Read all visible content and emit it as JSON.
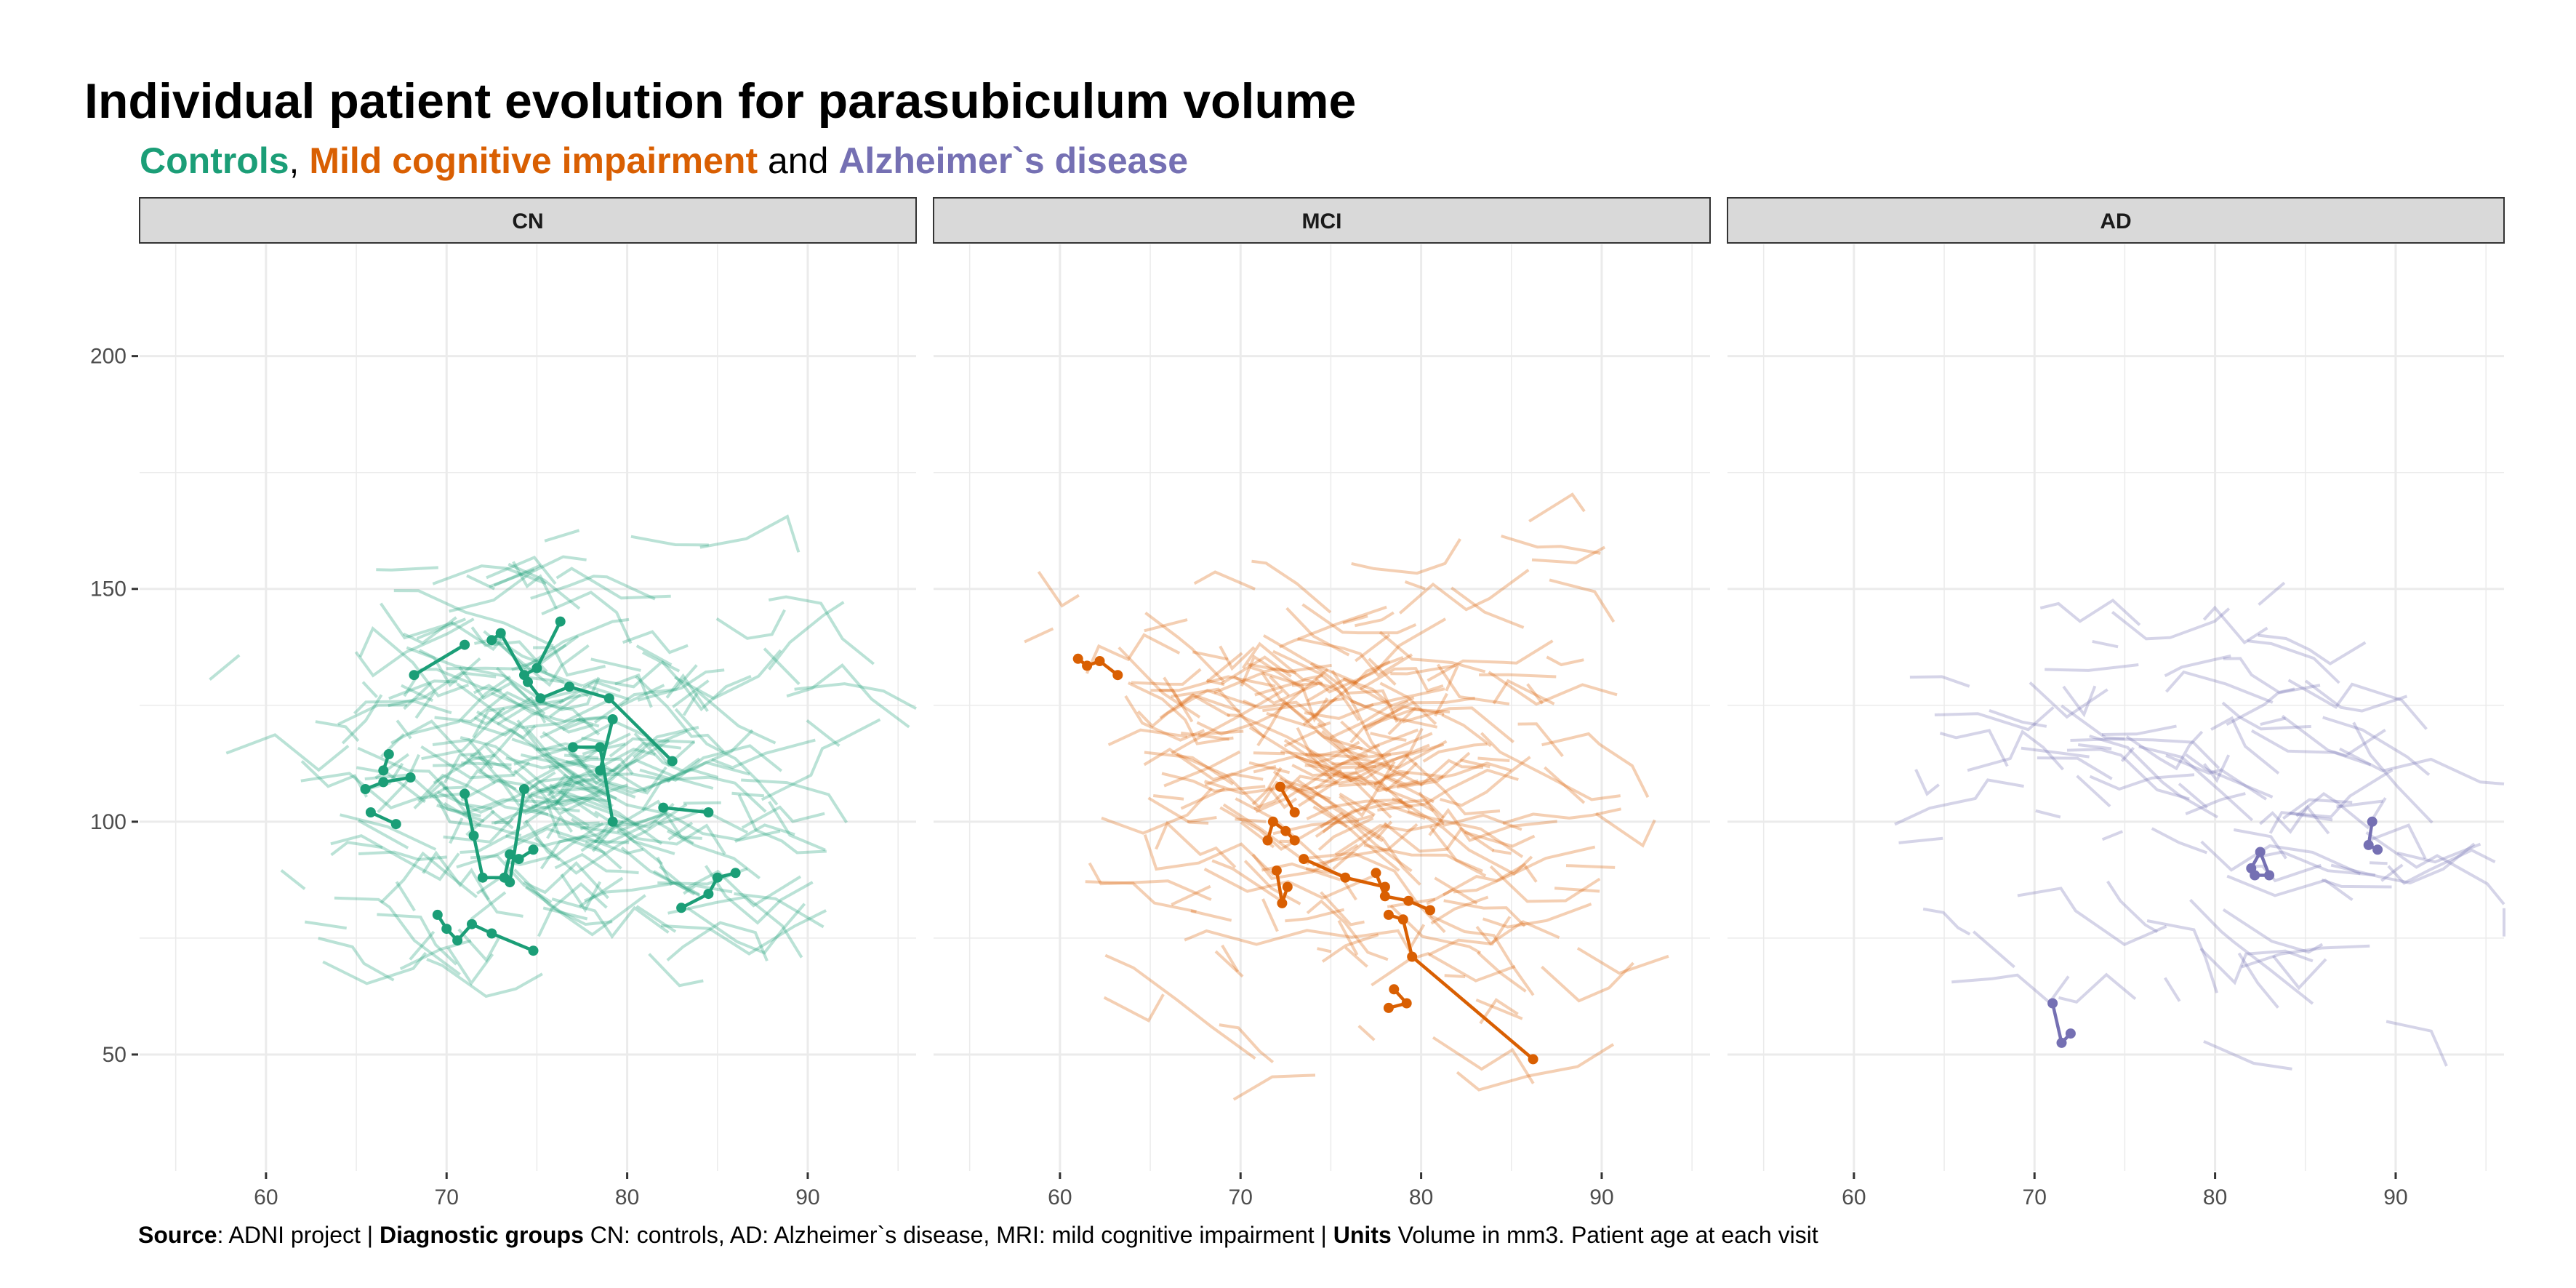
{
  "title": "Individual patient evolution for parasubiculum volume",
  "subtitle": {
    "controls": "Controls",
    "sep1": ", ",
    "mci": "Mild cognitive impairment",
    "sep2": " and ",
    "ad": "Alzheimer`s disease"
  },
  "caption": {
    "source_label": "Source",
    "source_text": ": ADNI project | ",
    "groups_label": "Diagnostic groups",
    "groups_text": " CN: controls, AD: Alzheimer`s disease, MRI: mild cognitive impairment | ",
    "units_label": "Units",
    "units_text": " Volume in mm3. Patient age at each visit"
  },
  "colors": {
    "CN": "#1b9e77",
    "MCI": "#d95f02",
    "AD": "#7570b3",
    "strip_fill": "#d9d9d9",
    "grid": "#ebebeb"
  },
  "chart_data": {
    "type": "line",
    "xlim": [
      53,
      96
    ],
    "ylim": [
      25,
      224
    ],
    "x_ticks": [
      60,
      70,
      80,
      90
    ],
    "y_ticks": [
      50,
      100,
      150,
      200
    ],
    "panels": [
      {
        "name": "CN",
        "background_line_count": 250,
        "background_center": [
          74,
          112
        ],
        "background_spread": [
          6.5,
          20
        ],
        "highlighted": [
          [
            [
              65.8,
              102
            ],
            [
              67.2,
              99.5
            ]
          ],
          [
            [
              65.5,
              107
            ],
            [
              66.5,
              108.5
            ],
            [
              68,
              109.5
            ]
          ],
          [
            [
              66.5,
              111
            ],
            [
              66.8,
              114.5
            ]
          ],
          [
            [
              68.2,
              131.5
            ],
            [
              71,
              138
            ]
          ],
          [
            [
              69.5,
              80
            ],
            [
              70,
              77
            ],
            [
              70.6,
              74.5
            ],
            [
              71.4,
              78
            ],
            [
              72.5,
              76
            ],
            [
              74.8,
              72.3
            ]
          ],
          [
            [
              71,
              106
            ],
            [
              71.5,
              97
            ],
            [
              72,
              88
            ],
            [
              73.2,
              88
            ],
            [
              73.5,
              93
            ],
            [
              74,
              92
            ],
            [
              74.8,
              94
            ]
          ],
          [
            [
              72.5,
              139
            ],
            [
              73,
              140.5
            ],
            [
              74.3,
              131.5
            ],
            [
              75,
              133
            ],
            [
              76.3,
              143
            ]
          ],
          [
            [
              74.5,
              130
            ],
            [
              75.2,
              126.5
            ],
            [
              76.8,
              129
            ],
            [
              79,
              126.5
            ],
            [
              82.5,
              113
            ]
          ],
          [
            [
              74.3,
              107
            ],
            [
              73.5,
              87
            ]
          ],
          [
            [
              77,
              116
            ],
            [
              78.5,
              116
            ],
            [
              79.2,
              100
            ]
          ],
          [
            [
              78.5,
              111
            ],
            [
              79.2,
              122
            ]
          ],
          [
            [
              82,
              103
            ],
            [
              84.5,
              102
            ]
          ],
          [
            [
              83,
              81.5
            ],
            [
              84.5,
              84.5
            ],
            [
              85,
              88
            ],
            [
              86,
              89
            ]
          ]
        ]
      },
      {
        "name": "MCI",
        "background_line_count": 240,
        "background_center": [
          74,
          112
        ],
        "background_spread": [
          6.5,
          25
        ],
        "highlighted": [
          [
            [
              61,
              135
            ],
            [
              61.5,
              133.5
            ],
            [
              62.2,
              134.5
            ],
            [
              63.2,
              131.5
            ]
          ],
          [
            [
              71.5,
              96
            ],
            [
              71.8,
              100
            ],
            [
              72.5,
              98
            ],
            [
              73,
              96
            ]
          ],
          [
            [
              72,
              89.5
            ],
            [
              72.3,
              82.5
            ],
            [
              72.6,
              86
            ]
          ],
          [
            [
              72.2,
              107.5
            ],
            [
              73,
              102
            ]
          ],
          [
            [
              73.5,
              92
            ],
            [
              75.8,
              88
            ],
            [
              78,
              86
            ]
          ],
          [
            [
              77.5,
              89
            ],
            [
              78,
              84
            ],
            [
              79.3,
              83
            ],
            [
              80.5,
              81
            ]
          ],
          [
            [
              78.2,
              80
            ],
            [
              79,
              79
            ],
            [
              79.5,
              71
            ],
            [
              86.2,
              49
            ]
          ],
          [
            [
              78.5,
              64
            ],
            [
              79.2,
              61
            ],
            [
              78.2,
              60
            ]
          ]
        ]
      },
      {
        "name": "AD",
        "background_line_count": 90,
        "background_center": [
          77,
          105
        ],
        "background_spread": [
          7.5,
          24
        ],
        "highlighted": [
          [
            [
              71,
              61
            ],
            [
              71.5,
              52.5
            ],
            [
              72,
              54.5
            ]
          ],
          [
            [
              82,
              90
            ],
            [
              82.5,
              93.5
            ],
            [
              83,
              88.5
            ],
            [
              82.2,
              88.5
            ]
          ],
          [
            [
              88.7,
              100
            ],
            [
              88.5,
              95
            ],
            [
              89,
              94
            ]
          ]
        ]
      }
    ]
  }
}
